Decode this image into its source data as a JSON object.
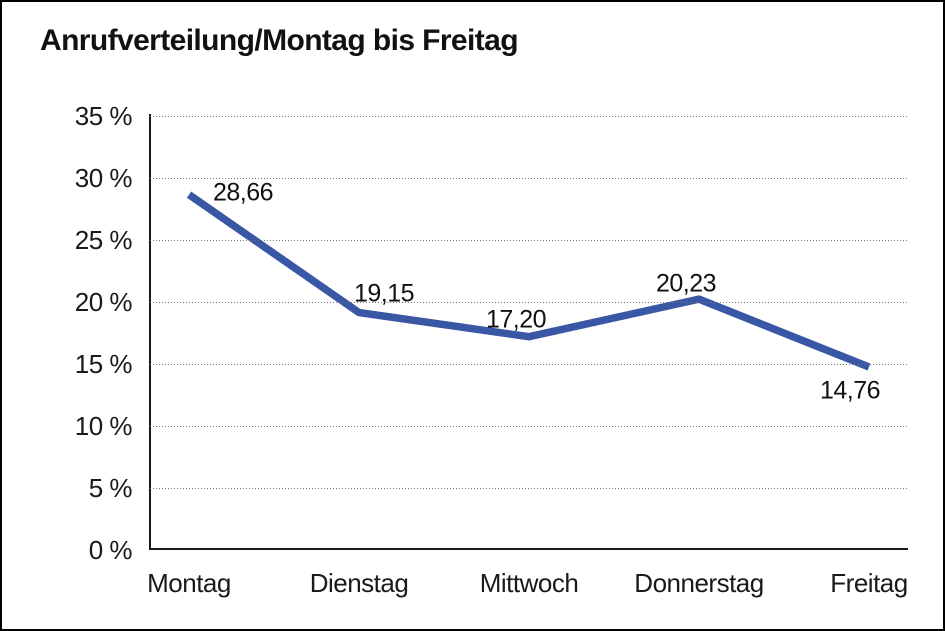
{
  "page": {
    "background": "#ffffff",
    "border_color": "#000000"
  },
  "chart_data": {
    "type": "line",
    "title": "Anrufverteilung/Montag bis Freitag",
    "categories": [
      "Montag",
      "Dienstag",
      "Mittwoch",
      "Donnerstag",
      "Freitag"
    ],
    "values": [
      28.66,
      19.15,
      17.2,
      20.23,
      14.76
    ],
    "value_labels": [
      "28,66",
      "19,15",
      "17,20",
      "20,23",
      "14,76"
    ],
    "xlabel": "",
    "ylabel": "",
    "ylim": [
      0,
      35
    ],
    "ytick_interval": 5,
    "yticks": [
      {
        "value": 35,
        "label": "35 %"
      },
      {
        "value": 30,
        "label": "30 %"
      },
      {
        "value": 25,
        "label": "25 %"
      },
      {
        "value": 20,
        "label": "20 %"
      },
      {
        "value": 15,
        "label": "15 %"
      },
      {
        "value": 10,
        "label": "10 %"
      },
      {
        "value": 5,
        "label": "5 %"
      },
      {
        "value": 0,
        "label": "0 %"
      }
    ],
    "grid": "horizontal-dotted",
    "legend": "none",
    "line_color": "#3A57A5",
    "colors": {
      "line": "#3A57A5",
      "text": "#1a1a1a",
      "axis": "#1a1a1a",
      "gridline": "#777777"
    }
  }
}
